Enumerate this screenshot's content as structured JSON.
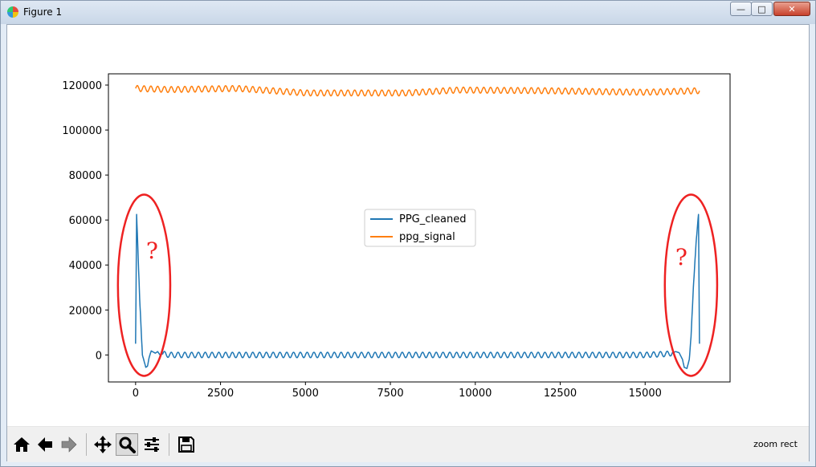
{
  "window": {
    "title": "Figure 1",
    "controls": {
      "minimize": "—",
      "maximize": "□",
      "close": "✕"
    }
  },
  "toolbar": {
    "buttons": [
      {
        "name": "home",
        "icon": "home-icon"
      },
      {
        "name": "back",
        "icon": "arrow-left-icon"
      },
      {
        "name": "forward",
        "icon": "arrow-right-icon"
      },
      {
        "name": "pan",
        "icon": "move-icon"
      },
      {
        "name": "zoom",
        "icon": "magnifier-icon"
      },
      {
        "name": "configure-subplots",
        "icon": "sliders-icon"
      },
      {
        "name": "save",
        "icon": "floppy-icon"
      }
    ],
    "status": "zoom rect"
  },
  "chart_data": {
    "type": "line",
    "title": "",
    "xlabel": "",
    "ylabel": "",
    "xlim": [
      -800,
      17500
    ],
    "ylim": [
      -12000,
      125000
    ],
    "xticks": [
      0,
      2500,
      5000,
      7500,
      10000,
      12500,
      15000
    ],
    "xtick_labels": [
      "0",
      "2500",
      "5000",
      "7500",
      "10000",
      "12500",
      "15000"
    ],
    "yticks": [
      0,
      20000,
      40000,
      60000,
      80000,
      100000,
      120000
    ],
    "ytick_labels": [
      "0",
      "20000",
      "40000",
      "60000",
      "80000",
      "100000",
      "120000"
    ],
    "grid": false,
    "legend_position": "center",
    "series": [
      {
        "name": "PPG_cleaned",
        "color": "#1f77b4",
        "x": [
          0,
          30,
          60,
          120,
          200,
          300,
          350,
          400,
          460,
          520,
          580,
          650,
          720,
          800,
          1000,
          3000,
          5000,
          8000,
          12000,
          15000,
          15700,
          15900,
          16000,
          16100,
          16150,
          16230,
          16300,
          16350,
          16420,
          16500,
          16570,
          16600
        ],
        "y": [
          5000,
          62500,
          50000,
          25000,
          0,
          -5500,
          -5000,
          -1000,
          1800,
          1300,
          800,
          1500,
          0,
          500,
          0,
          0,
          0,
          0,
          0,
          0,
          500,
          1500,
          1000,
          -2000,
          -5500,
          -6000,
          -2000,
          8000,
          30000,
          50000,
          62500,
          5000
        ],
        "oscillation": {
          "amplitude": 1200,
          "period": 200,
          "range": [
            800,
            15800
          ]
        }
      },
      {
        "name": "ppg_signal",
        "color": "#ff7f0e",
        "x": [
          0,
          1000,
          3000,
          4000,
          5000,
          8000,
          9500,
          12000,
          14000,
          15000,
          16600
        ],
        "y": [
          118500,
          118000,
          118500,
          117500,
          116500,
          116500,
          117800,
          117500,
          117000,
          116800,
          117500
        ],
        "oscillation": {
          "amplitude": 1300,
          "period": 200,
          "range": [
            0,
            16600
          ]
        }
      }
    ],
    "annotations": [
      {
        "type": "ellipse",
        "color": "#ee2222",
        "label": "?",
        "around_x": [
          0,
          500
        ]
      },
      {
        "type": "ellipse",
        "color": "#ee2222",
        "label": "?",
        "around_x": [
          16100,
          16600
        ]
      }
    ]
  }
}
